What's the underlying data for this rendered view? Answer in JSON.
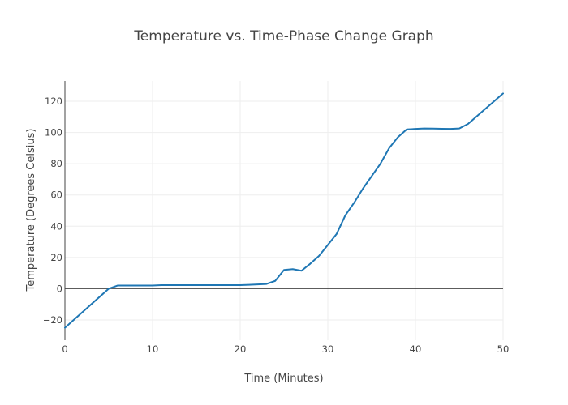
{
  "chart_data": {
    "type": "line",
    "title": "Temperature vs. Time-Phase Change Graph",
    "xlabel": "Time (Minutes)",
    "ylabel": "Temperature (Degrees Celsius)",
    "xlim": [
      0,
      50
    ],
    "ylim": [
      -33,
      133
    ],
    "xticks": [
      0,
      10,
      20,
      30,
      40,
      50
    ],
    "yticks": [
      -20,
      0,
      20,
      40,
      60,
      80,
      100,
      120
    ],
    "grid": true,
    "line_color": "#1f77b4",
    "series": [
      {
        "x": [
          0,
          5,
          6,
          10,
          11,
          15,
          20,
          21,
          23,
          24,
          25,
          26,
          27,
          28,
          29,
          31,
          32,
          33,
          34,
          35,
          36,
          37,
          38,
          39,
          40,
          41,
          42,
          43,
          44,
          45,
          46,
          50
        ],
        "y": [
          -25,
          0,
          2,
          2,
          2.3,
          2.3,
          2.3,
          2.5,
          3,
          5,
          12,
          12.5,
          11.5,
          16,
          21,
          35,
          47,
          55,
          64,
          72,
          80,
          90,
          97,
          102,
          102.3,
          102.6,
          102.5,
          102.4,
          102.3,
          102.6,
          105.5,
          125
        ]
      }
    ]
  }
}
